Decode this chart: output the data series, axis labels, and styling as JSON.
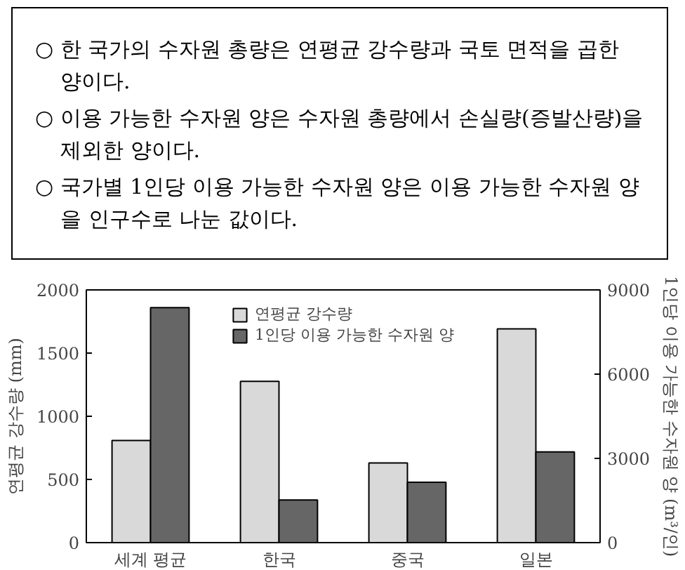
{
  "chart_data": {
    "type": "bar",
    "annotations": [
      "○ 한 국가의 수자원 총량은 연평균 강수량과 국토 면적을 곱한 양이다.",
      "○ 이용 가능한 수자원 양은 수자원 총량에서 손실량(증발산량)을 제외한 양이다.",
      "○ 국가별 1인당 이용 가능한 수자원 양은 이용 가능한 수자원 양을 인구수로 나눈 값이다."
    ],
    "ylabel": "연평균 강수량 (mm)",
    "y2label": "1인당 이용 가능한 수자원 양 (m³/인)",
    "categories": [
      "세계 평균",
      "한국",
      "중국",
      "일본"
    ],
    "series": [
      {
        "name": "연평균 강수량",
        "color": "#d9d9d9",
        "values": [
          808,
          1277,
          630,
          1691
        ]
      },
      {
        "name": "1인당 이용 가능한 수자원 양",
        "color": "#666666",
        "values": [
          8370,
          1520,
          2150,
          3230
        ],
        "axis": "y2"
      }
    ],
    "ylim": [
      0,
      2000
    ],
    "yticks": [
      0,
      500,
      1000,
      1500,
      2000
    ],
    "y2lim": [
      0,
      9000
    ],
    "y2ticks": [
      0,
      3000,
      6000,
      9000
    ],
    "grid": false,
    "legend": "top"
  }
}
